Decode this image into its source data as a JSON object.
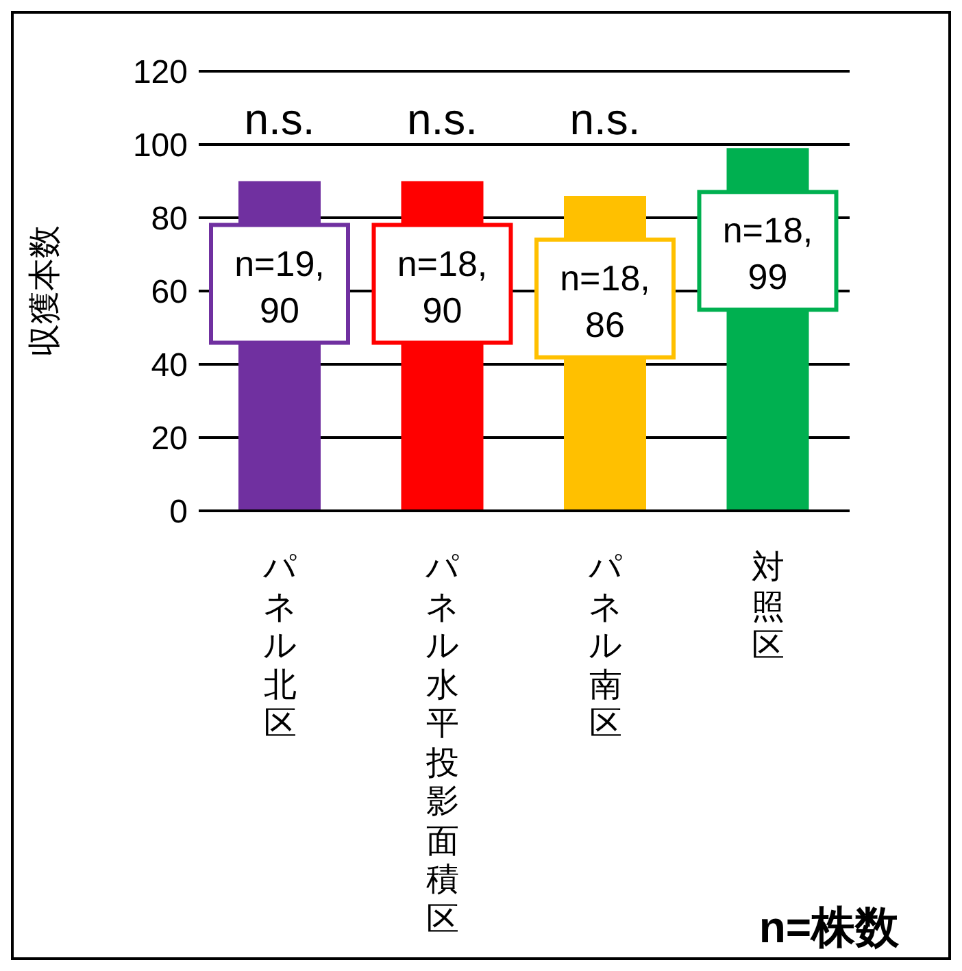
{
  "chart_data": {
    "type": "bar",
    "ylabel": "収獲本数",
    "categories": [
      "パネル北区",
      "パネル水平投影面積区",
      "パネル南区",
      "対照区"
    ],
    "values": [
      90,
      90,
      86,
      99
    ],
    "colors": [
      "#7030a0",
      "#ff0000",
      "#ffc000",
      "#00b050"
    ],
    "value_labels": [
      "n=19, 90",
      "n=18, 90",
      "n=18, 86",
      "n=18, 99"
    ],
    "ylim": [
      0,
      120
    ],
    "yticks": [
      0,
      20,
      40,
      60,
      80,
      100,
      120
    ],
    "grid": "y",
    "annotations": [
      "n.s.",
      "n.s.",
      "n.s.",
      "n=株数"
    ]
  }
}
